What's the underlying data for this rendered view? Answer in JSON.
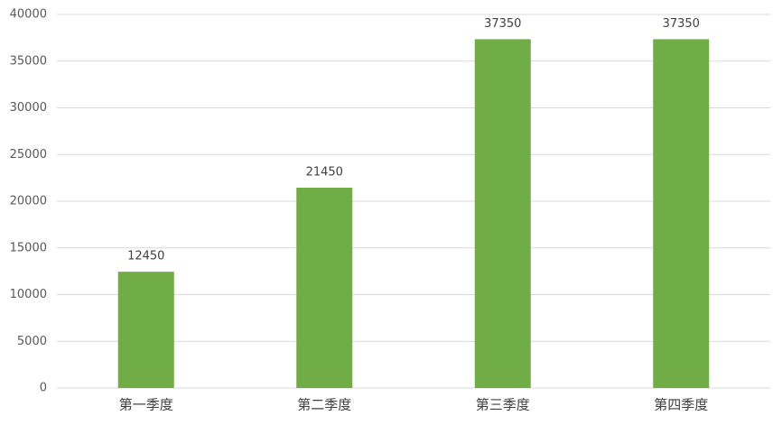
{
  "chart_data": {
    "type": "bar",
    "categories": [
      "第一季度",
      "第二季度",
      "第三季度",
      "第四季度"
    ],
    "values": [
      12450,
      21450,
      37350,
      37350
    ],
    "color": "#70ad47",
    "ylim": [
      0,
      40000
    ],
    "yticks": [
      0,
      5000,
      10000,
      15000,
      20000,
      25000,
      30000,
      35000,
      40000
    ],
    "grid": true
  }
}
